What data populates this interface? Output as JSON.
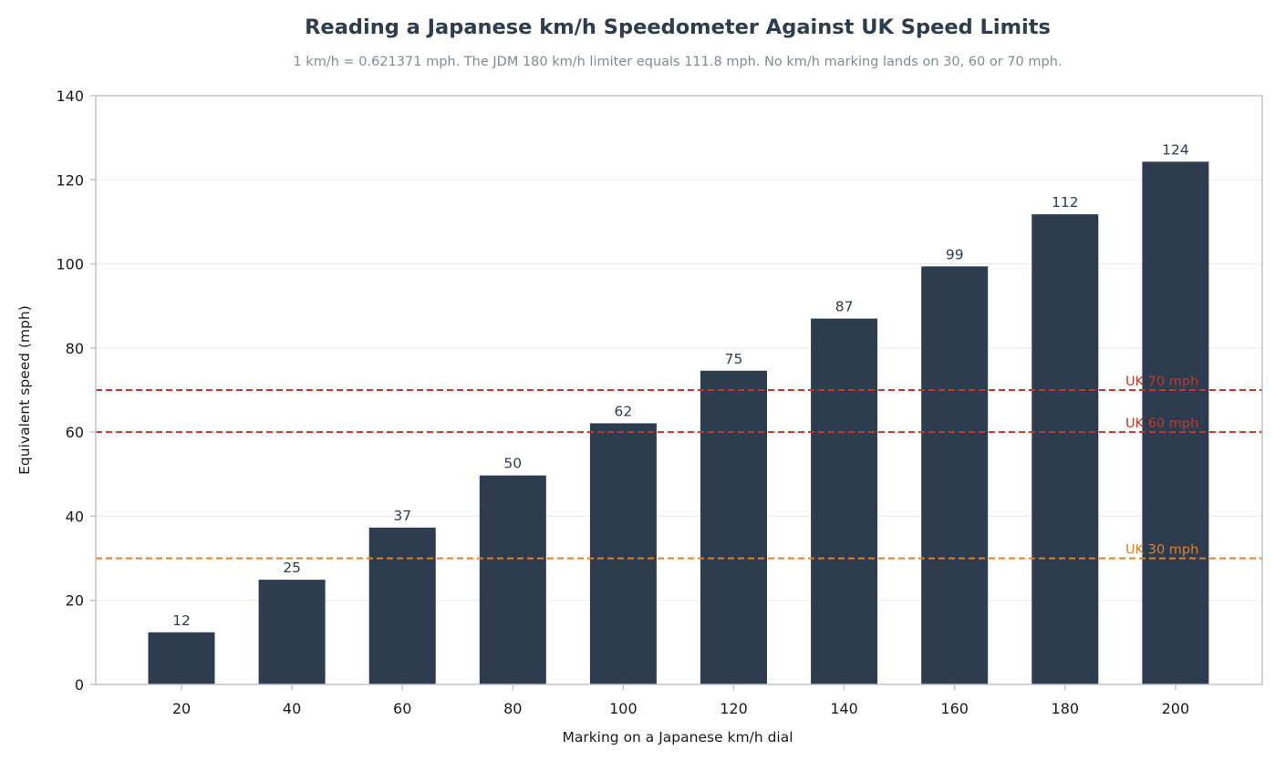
{
  "chart_data": {
    "type": "bar",
    "title": "Reading a Japanese km/h Speedometer Against UK Speed Limits",
    "subtitle": "1 km/h = 0.621371 mph. The JDM 180 km/h limiter equals 111.8 mph. No km/h marking lands on 30, 60 or 70 mph.",
    "xlabel": "Marking on a Japanese km/h dial",
    "ylabel": "Equivalent speed (mph)",
    "categories": [
      "20",
      "40",
      "60",
      "80",
      "100",
      "120",
      "140",
      "160",
      "180",
      "200"
    ],
    "values": [
      12.4,
      24.9,
      37.3,
      49.7,
      62.1,
      74.6,
      87.0,
      99.4,
      111.8,
      124.3
    ],
    "data_labels": [
      "12",
      "25",
      "37",
      "50",
      "62",
      "75",
      "87",
      "99",
      "112",
      "124"
    ],
    "ylim": [
      0,
      140
    ],
    "yticks": [
      0,
      20,
      40,
      60,
      80,
      100,
      120,
      140
    ],
    "grid": "horizontal",
    "reference_lines": [
      {
        "value": 70,
        "label": "UK 70 mph",
        "color": "#c0392b"
      },
      {
        "value": 60,
        "label": "UK 60 mph",
        "color": "#c0392b"
      },
      {
        "value": 30,
        "label": "UK 30 mph",
        "color": "#e67e22"
      }
    ],
    "colors": {
      "bar": "#2d3c4f",
      "title": "#2d3c4f",
      "subtitle": "#7f8c8d",
      "axis": "#bdc3c7",
      "grid": "#e5e7e9",
      "text": "#1a1a1a"
    }
  }
}
